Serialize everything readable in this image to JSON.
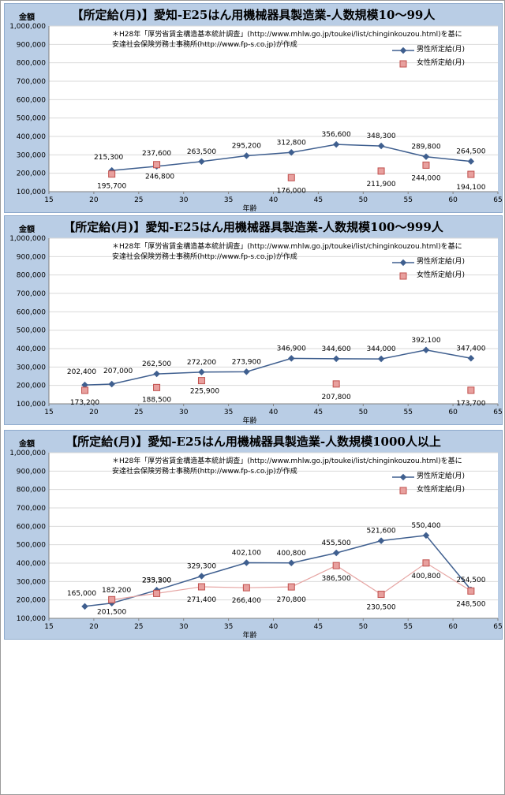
{
  "chart_data": [
    {
      "type": "line",
      "title": "【所定給(月)】愛知-E25はん用機械器具製造業-人数規模10～99人",
      "ylabel": "金額",
      "xlabel": "年齢",
      "note_lines": [
        "＊H28年「厚労省賃金構造基本統計調査」(http://www.mhlw.go.jp/toukei/list/chinginkouzou.html)を基に",
        "安達社会保険労務士事務所(http://www.fp-s.co.jp)が作成"
      ],
      "xlim": [
        15,
        65
      ],
      "ylim": [
        100000,
        1000000
      ],
      "xticks": [
        "15",
        "20",
        "25",
        "30",
        "35",
        "40",
        "45",
        "50",
        "55",
        "60",
        "65"
      ],
      "yticks": [
        "100,000",
        "200,000",
        "300,000",
        "400,000",
        "500,000",
        "600,000",
        "700,000",
        "800,000",
        "900,000",
        "1,000,000"
      ],
      "series": [
        {
          "name": "男性所定給(月)",
          "x": [
            22,
            27,
            32,
            37,
            42,
            47,
            52,
            57,
            62
          ],
          "y": [
            215300,
            237600,
            263500,
            295200,
            312800,
            356600,
            348300,
            289800,
            264500
          ],
          "labels": [
            "215,300",
            "237,600",
            "263,500",
            "295,200",
            "312,800",
            "356,600",
            "348,300",
            "289,800",
            "264,500"
          ],
          "color": "#3f5f8f",
          "connected": true
        },
        {
          "name": "女性所定給(月)",
          "x": [
            22,
            27,
            42,
            52,
            57,
            62
          ],
          "y": [
            195700,
            246800,
            176000,
            211900,
            244000,
            194100
          ],
          "labels": [
            "195,700",
            "246,800",
            "176,000",
            "211,900",
            "244,000",
            "194,100"
          ],
          "color": "#c0504d",
          "connected": false
        }
      ]
    },
    {
      "type": "line",
      "title": "【所定給(月)】愛知-E25はん用機械器具製造業-人数規模100～999人",
      "ylabel": "金額",
      "xlabel": "年齢",
      "note_lines": [
        "＊H28年「厚労省賃金構造基本統計調査」(http://www.mhlw.go.jp/toukei/list/chinginkouzou.html)を基に",
        "安達社会保険労務士事務所(http://www.fp-s.co.jp)が作成"
      ],
      "xlim": [
        15,
        65
      ],
      "ylim": [
        100000,
        1000000
      ],
      "xticks": [
        "15",
        "20",
        "25",
        "30",
        "35",
        "40",
        "45",
        "50",
        "55",
        "60",
        "65"
      ],
      "yticks": [
        "100,000",
        "200,000",
        "300,000",
        "400,000",
        "500,000",
        "600,000",
        "700,000",
        "800,000",
        "900,000",
        "1,000,000"
      ],
      "series": [
        {
          "name": "男性所定給(月)",
          "x": [
            19,
            22,
            27,
            32,
            37,
            42,
            47,
            52,
            57,
            62
          ],
          "y": [
            202400,
            207000,
            262500,
            272200,
            273900,
            346900,
            344600,
            344000,
            392100,
            347400
          ],
          "labels": [
            "202,400",
            "207,000",
            "262,500",
            "272,200",
            "273,900",
            "346,900",
            "344,600",
            "344,000",
            "392,100",
            "347,400"
          ],
          "color": "#3f5f8f",
          "connected": true
        },
        {
          "name": "女性所定給(月)",
          "x": [
            19,
            27,
            32,
            47,
            62
          ],
          "y": [
            173200,
            188500,
            225900,
            207800,
            173700
          ],
          "labels": [
            "173,200",
            "188,500",
            "225,900",
            "207,800",
            "173,700"
          ],
          "color": "#c0504d",
          "connected": false
        }
      ]
    },
    {
      "type": "line",
      "title": "【所定給(月)】愛知-E25はん用機械器具製造業-人数規模1000人以上",
      "ylabel": "金額",
      "xlabel": "年齢",
      "note_lines": [
        "＊H28年「厚労省賃金構造基本統計調査」(http://www.mhlw.go.jp/toukei/list/chinginkouzou.html)を基に",
        "安達社会保険労務士事務所(http://www.fp-s.co.jp)が作成"
      ],
      "xlim": [
        15,
        65
      ],
      "ylim": [
        100000,
        1000000
      ],
      "xticks": [
        "15",
        "20",
        "25",
        "30",
        "35",
        "40",
        "45",
        "50",
        "55",
        "60",
        "65"
      ],
      "yticks": [
        "100,000",
        "200,000",
        "300,000",
        "400,000",
        "500,000",
        "600,000",
        "700,000",
        "800,000",
        "900,000",
        "1,000,000"
      ],
      "series": [
        {
          "name": "男性所定給(月)",
          "x": [
            19,
            22,
            27,
            32,
            37,
            42,
            47,
            52,
            57,
            62
          ],
          "y": [
            165000,
            182200,
            253200,
            329300,
            402100,
            400800,
            455500,
            521600,
            550400,
            254500
          ],
          "labels": [
            "165,000",
            "182,200",
            "253,200",
            "329,300",
            "402,100",
            "400,800",
            "455,500",
            "521,600",
            "550,400",
            "254,500"
          ],
          "color": "#3f5f8f",
          "connected": true
        },
        {
          "name": "女性所定給(月)",
          "x": [
            22,
            27,
            32,
            37,
            42,
            47,
            52,
            57,
            62
          ],
          "y": [
            201500,
            235500,
            271400,
            266400,
            270800,
            386500,
            230500,
            400800,
            248500
          ],
          "labels": [
            "201,500",
            "235,500",
            "271,400",
            "266,400",
            "270,800",
            "386,500",
            "230,500",
            "400,800",
            "248,500"
          ],
          "color": "#c0504d",
          "connected": true
        }
      ]
    }
  ]
}
